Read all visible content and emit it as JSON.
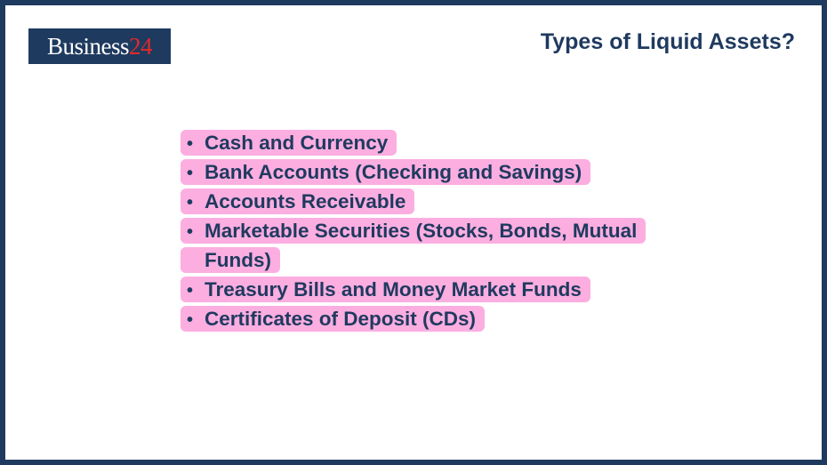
{
  "logo": {
    "text": "Business",
    "number": "24"
  },
  "title": "Types of Liquid Assets?",
  "colors": {
    "navy": "#1f3a5f",
    "highlight": "#fcaee0",
    "logo_accent": "#e02a2a"
  },
  "items": [
    "Cash and Currency",
    "Bank Accounts (Checking and Savings)",
    "Accounts Receivable",
    "Marketable Securities (Stocks, Bonds, Mutual Funds)",
    "Treasury Bills and Money Market Funds",
    "Certificates of Deposit (CDs)"
  ]
}
